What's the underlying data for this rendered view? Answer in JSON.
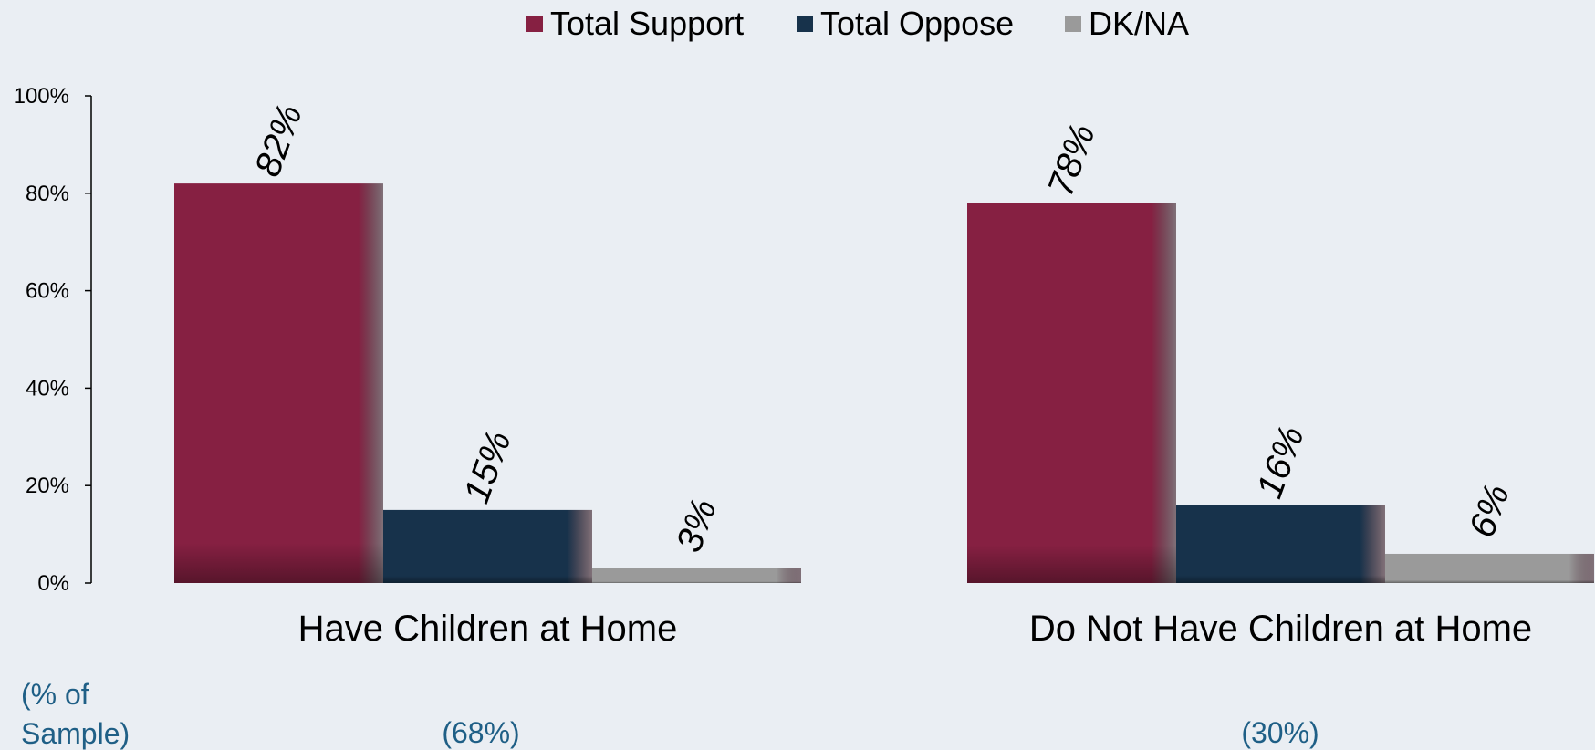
{
  "chart_data": {
    "type": "bar",
    "categories": [
      "Have Children at Home",
      "Do Not Have Children at Home"
    ],
    "series": [
      {
        "name": "Total Support",
        "values": [
          82,
          78
        ],
        "color": "#862042"
      },
      {
        "name": "Total Oppose",
        "values": [
          15,
          16
        ],
        "color": "#17324b"
      },
      {
        "name": "DK/NA",
        "values": [
          3,
          6
        ],
        "color": "#9a9a9a"
      }
    ],
    "data_labels": [
      [
        "82%",
        "78%"
      ],
      [
        "15%",
        "16%"
      ],
      [
        "3%",
        "6%"
      ]
    ],
    "ylim": [
      0,
      100
    ],
    "yticks": [
      "0%",
      "20%",
      "40%",
      "60%",
      "80%",
      "100%"
    ],
    "grid": false,
    "legend_position": "top-center",
    "sample_label": "(% of Sample)",
    "sample_label_lines": [
      "(% of",
      "Sample)"
    ],
    "sample_values": [
      "(68%)",
      "(30%)"
    ]
  }
}
